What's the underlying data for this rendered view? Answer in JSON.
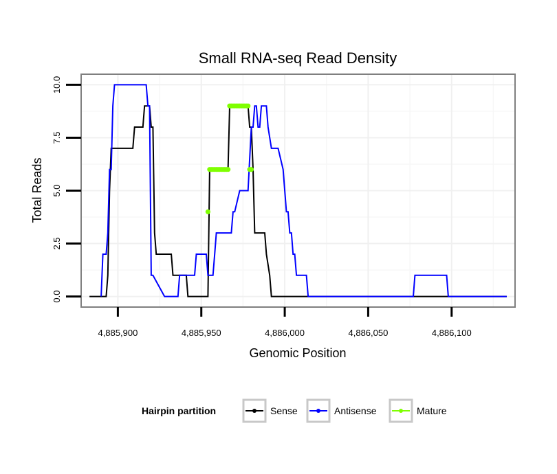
{
  "chart_data": {
    "type": "line",
    "title": "Small RNA-seq Read Density",
    "xlabel": "Genomic Position",
    "ylabel": "Total Reads",
    "xlim": [
      4885878,
      4886138
    ],
    "ylim": [
      -0.5,
      10.5
    ],
    "xticks": [
      4885900,
      4885950,
      4886000,
      4886050,
      4886100
    ],
    "xtick_labels": [
      "4,885,900",
      "4,885,950",
      "4,886,000",
      "4,886,050",
      "4,886,100"
    ],
    "yticks": [
      0,
      2.5,
      5,
      7.5,
      10
    ],
    "ytick_labels": [
      "0.0",
      "2.5",
      "5.0",
      "7.5",
      "10.0"
    ],
    "grid": true,
    "legend": {
      "title": "Hairpin partition",
      "position": "bottom",
      "entries": [
        "Sense",
        "Antisense",
        "Mature"
      ]
    },
    "series": [
      {
        "name": "Sense",
        "color": "#000000",
        "style": "line",
        "x": [
          4885883,
          4885893,
          4885894,
          4885895,
          4885896,
          4885897,
          4885909,
          4885910,
          4885915,
          4885916,
          4885919,
          4885920,
          4885921,
          4885922,
          4885923,
          4885932,
          4885933,
          4885941,
          4885942,
          4885954,
          4885955,
          4885966,
          4885967,
          4885978,
          4885979,
          4885980,
          4885981,
          4885982,
          4885988,
          4885989,
          4885991,
          4885992,
          4886133
        ],
        "y": [
          0,
          0,
          1,
          5,
          7,
          7,
          7,
          8,
          8,
          9,
          9,
          8,
          8,
          3,
          2,
          2,
          1,
          1,
          0,
          0,
          6,
          6,
          9,
          9,
          8,
          8,
          6,
          3,
          3,
          2,
          1,
          0,
          0
        ]
      },
      {
        "name": "Antisense",
        "color": "#0000ff",
        "style": "line",
        "x": [
          4885890,
          4885891,
          4885893,
          4885894,
          4885895,
          4885896,
          4885897,
          4885898,
          4885917,
          4885918,
          4885919,
          4885920,
          4885921,
          4885928,
          4885929,
          4885930,
          4885936,
          4885937,
          4885941,
          4885942,
          4885946,
          4885947,
          4885953,
          4885954,
          4885957,
          4885958,
          4885959,
          4885960,
          4885967,
          4885968,
          4885969,
          4885970,
          4885973,
          4885974,
          4885978,
          4885980,
          4885981,
          4885982,
          4885983,
          4885984,
          4885985,
          4885986,
          4885987,
          4885988,
          4885989,
          4885990,
          4885992,
          4885993,
          4885994,
          4885995,
          4885996,
          4885999,
          4886000,
          4886001,
          4886002,
          4886003,
          4886004,
          4886005,
          4886006,
          4886007,
          4886008,
          4886009,
          4886013,
          4886014,
          4886077,
          4886078,
          4886097,
          4886098,
          4886133
        ],
        "y": [
          0,
          2,
          2,
          3,
          6,
          6,
          9,
          10,
          10,
          9,
          9,
          1,
          1,
          0,
          0,
          0,
          0,
          1,
          1,
          1,
          1,
          2,
          2,
          1,
          1,
          2,
          3,
          3,
          3,
          3,
          4,
          4,
          5,
          5,
          5,
          8,
          8,
          9,
          9,
          8,
          8,
          9,
          9,
          9,
          9,
          8,
          7,
          7,
          7,
          7,
          7,
          6,
          5,
          4,
          4,
          3,
          3,
          2,
          2,
          1,
          1,
          1,
          1,
          0,
          0,
          1,
          1,
          0,
          0
        ]
      },
      {
        "name": "Mature",
        "color": "#7fff00",
        "style": "points",
        "x": [
          4885954,
          4885955,
          4885956,
          4885957,
          4885958,
          4885959,
          4885960,
          4885961,
          4885962,
          4885963,
          4885964,
          4885965,
          4885966,
          4885967,
          4885968,
          4885969,
          4885970,
          4885971,
          4885972,
          4885973,
          4885974,
          4885975,
          4885976,
          4885977,
          4885978,
          4885979,
          4885980
        ],
        "y": [
          4,
          6,
          6,
          6,
          6,
          6,
          6,
          6,
          6,
          6,
          6,
          6,
          6,
          9,
          9,
          9,
          9,
          9,
          9,
          9,
          9,
          9,
          9,
          9,
          9,
          6,
          6
        ]
      }
    ]
  }
}
